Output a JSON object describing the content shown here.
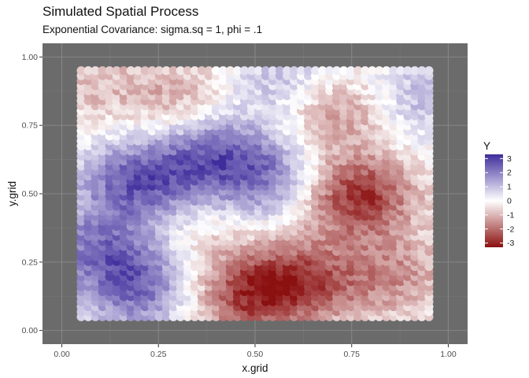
{
  "chart_data": {
    "type": "scatter",
    "title": "Simulated Spatial Process",
    "subtitle": "Exponential Covariance: sigma.sq = 1, phi = .1",
    "xlabel": "x.grid",
    "ylabel": "y.grid",
    "xlim": [
      -0.05,
      1.05
    ],
    "ylim": [
      -0.05,
      1.05
    ],
    "x_ticks": [
      0.0,
      0.25,
      0.5,
      0.75,
      1.0
    ],
    "x_tick_labels": [
      "0.00",
      "0.25",
      "0.50",
      "0.75",
      "1.00"
    ],
    "y_ticks": [
      0.0,
      0.25,
      0.5,
      0.75,
      1.0
    ],
    "y_tick_labels": [
      "0.00",
      "0.25",
      "0.50",
      "0.75",
      "1.00"
    ],
    "grid": true,
    "panel_background": "#6b6b6b",
    "grid_x_range": [
      0.05,
      0.95
    ],
    "grid_y_range": [
      0.05,
      0.95
    ],
    "grid_count_x": 50,
    "grid_count_y": 50,
    "field_centers": [
      {
        "x": 0.2,
        "y": 0.55,
        "value": 2.5
      },
      {
        "x": 0.1,
        "y": 0.3,
        "value": 2.0
      },
      {
        "x": 0.22,
        "y": 0.15,
        "value": 2.2
      },
      {
        "x": 0.4,
        "y": 0.65,
        "value": 2.2
      },
      {
        "x": 0.55,
        "y": 0.55,
        "value": 1.8
      },
      {
        "x": 0.6,
        "y": 0.9,
        "value": 1.5
      },
      {
        "x": 0.92,
        "y": 0.85,
        "value": 1.2
      },
      {
        "x": 0.3,
        "y": 0.85,
        "value": -1.2
      },
      {
        "x": 0.6,
        "y": 0.18,
        "value": -2.5
      },
      {
        "x": 0.45,
        "y": 0.12,
        "value": -2.0
      },
      {
        "x": 0.76,
        "y": 0.5,
        "value": -3.0
      },
      {
        "x": 0.7,
        "y": 0.82,
        "value": -2.0
      },
      {
        "x": 0.85,
        "y": 0.2,
        "value": -1.5
      },
      {
        "x": 0.05,
        "y": 0.9,
        "value": -0.8
      },
      {
        "x": 0.35,
        "y": 0.35,
        "value": -0.6
      }
    ],
    "legend": {
      "title": "Y",
      "position": "right",
      "ticks": [
        3,
        2,
        1,
        0,
        -1,
        -2,
        -3
      ],
      "tick_labels": [
        "3",
        "2",
        "1",
        "0",
        "-1",
        "-2",
        "-3"
      ],
      "range": [
        -3.3,
        3.3
      ],
      "colors": {
        "high": "#3f2d9c",
        "mid": "#ffffff",
        "low": "#8b1010"
      }
    }
  }
}
